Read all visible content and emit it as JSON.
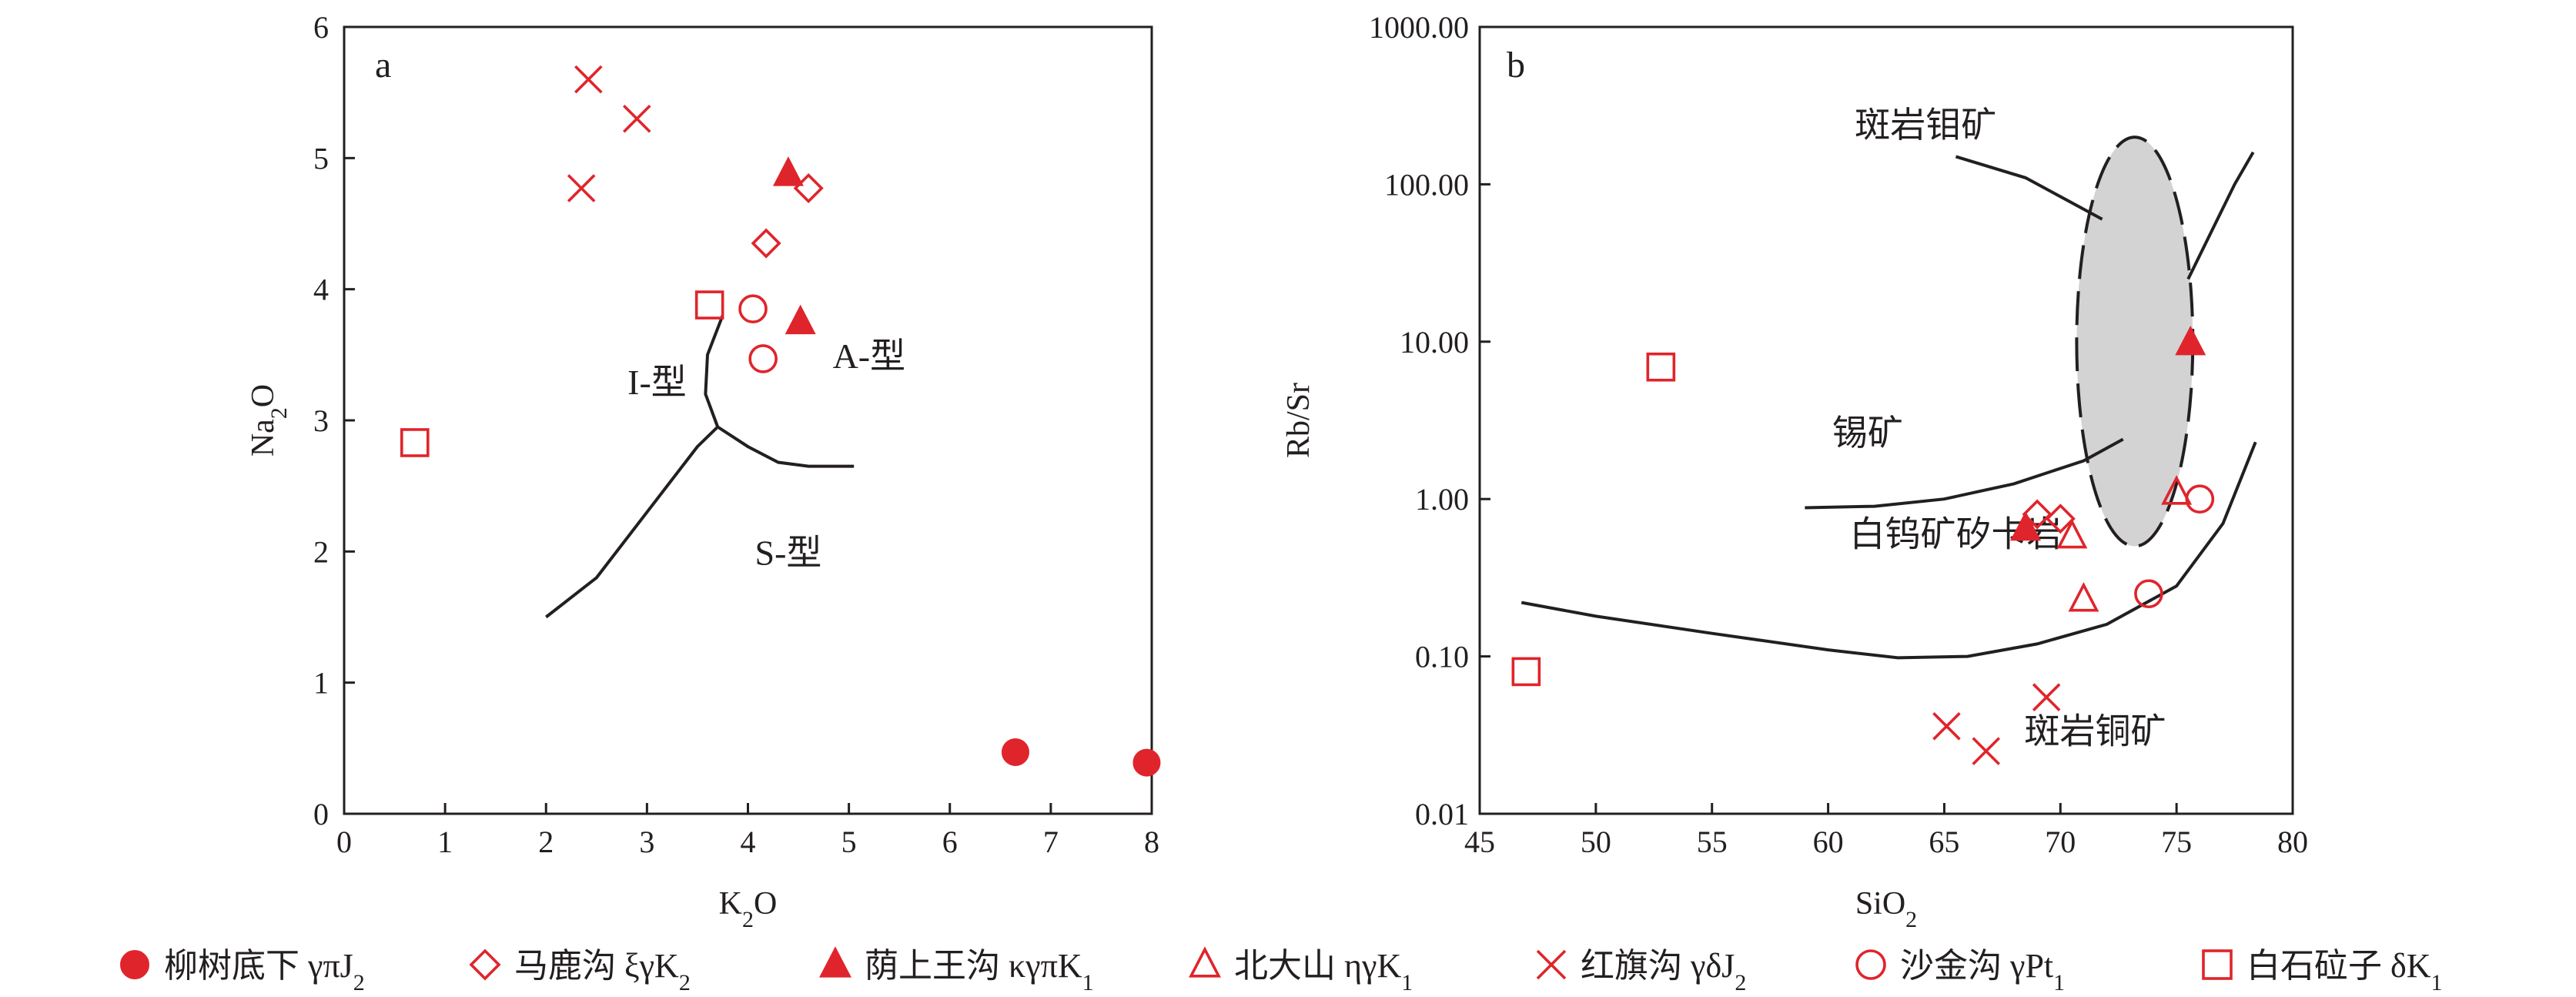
{
  "colors": {
    "marker": "#e0242b",
    "axis": "#231f20",
    "ellipse_fill": "#d3d3d3"
  },
  "legend": [
    {
      "symbol": "filled-circle",
      "name": "柳树底下",
      "rock": "γπ",
      "age": "J",
      "sub": "2"
    },
    {
      "symbol": "open-diamond",
      "name": "马鹿沟",
      "rock": "ξγ",
      "age": "K",
      "sub": "2"
    },
    {
      "symbol": "filled-triangle",
      "name": "荫上王沟",
      "rock": "κγπ",
      "age": "K",
      "sub": "1"
    },
    {
      "symbol": "open-triangle",
      "name": "北大山",
      "rock": "ηγ",
      "age": "K",
      "sub": "1"
    },
    {
      "symbol": "cross",
      "name": "红旗沟",
      "rock": "γδ",
      "age": "J",
      "sub": "2"
    },
    {
      "symbol": "open-circle",
      "name": "沙金沟",
      "rock": "γ",
      "age": "Pt",
      "sub": "1"
    },
    {
      "symbol": "open-square",
      "name": "白石砬子",
      "rock": "δ",
      "age": "K",
      "sub": "1"
    }
  ],
  "chart_data": [
    {
      "panel": "a",
      "type": "scatter",
      "xlabel": {
        "main": "K",
        "sub": "2",
        "tail": "O"
      },
      "ylabel": {
        "main": "Na",
        "sub": "2",
        "tail": "O"
      },
      "xlim": [
        0,
        8
      ],
      "ylim": [
        0,
        6
      ],
      "xticks": [
        0,
        1,
        2,
        3,
        4,
        5,
        6,
        7,
        8
      ],
      "yticks": [
        0,
        1,
        2,
        3,
        4,
        5,
        6
      ],
      "regions": [
        {
          "label": "I-型",
          "x": 3.1,
          "y": 3.2
        },
        {
          "label": "A-型",
          "x": 5.2,
          "y": 3.4
        },
        {
          "label": "S-型",
          "x": 4.4,
          "y": 1.9
        }
      ],
      "boundaries": [
        [
          [
            2.0,
            1.5
          ],
          [
            2.5,
            1.8
          ],
          [
            3.0,
            2.3
          ],
          [
            3.5,
            2.8
          ],
          [
            3.7,
            2.95
          ]
        ],
        [
          [
            3.7,
            2.95
          ],
          [
            3.58,
            3.2
          ],
          [
            3.6,
            3.5
          ],
          [
            3.75,
            3.8
          ]
        ],
        [
          [
            3.7,
            2.95
          ],
          [
            4.0,
            2.8
          ],
          [
            4.3,
            2.68
          ],
          [
            4.6,
            2.65
          ],
          [
            5.05,
            2.65
          ]
        ]
      ],
      "series": [
        {
          "symbol": "filled-circle",
          "points": [
            [
              6.65,
              0.47
            ],
            [
              7.95,
              0.39
            ]
          ]
        },
        {
          "symbol": "open-diamond",
          "points": [
            [
              4.6,
              4.77
            ],
            [
              4.18,
              4.35
            ]
          ]
        },
        {
          "symbol": "filled-triangle",
          "points": [
            [
              4.4,
              4.88
            ],
            [
              4.52,
              3.75
            ]
          ]
        },
        {
          "symbol": "cross",
          "points": [
            [
              2.42,
              5.6
            ],
            [
              2.9,
              5.3
            ],
            [
              2.35,
              4.77
            ]
          ]
        },
        {
          "symbol": "open-circle",
          "points": [
            [
              4.05,
              3.85
            ],
            [
              4.15,
              3.47
            ]
          ]
        },
        {
          "symbol": "open-square",
          "points": [
            [
              3.62,
              3.88
            ],
            [
              0.7,
              2.83
            ]
          ]
        }
      ]
    },
    {
      "panel": "b",
      "type": "scatter",
      "xlabel": {
        "main": "SiO",
        "sub": "2",
        "tail": ""
      },
      "ylabel": {
        "main": "Rb/Sr",
        "sub": "",
        "tail": ""
      },
      "xlim": [
        45,
        80
      ],
      "ylim": [
        0.01,
        1000
      ],
      "yscale": "log",
      "xticks": [
        45,
        50,
        55,
        60,
        65,
        70,
        75,
        80
      ],
      "yticks": [
        0.01,
        0.1,
        1,
        10,
        100,
        1000
      ],
      "ytick_labels": [
        "0.01",
        "0.10",
        "1.00",
        "10.00",
        "100.00",
        "1000.00"
      ],
      "regions": [
        {
          "label": "斑岩钼矿",
          "x": 64.2,
          "y": 200
        },
        {
          "label": "锡矿",
          "x": 61.7,
          "y": 2.2
        },
        {
          "label": "白钨矿矽卡岩",
          "x": 65.5,
          "y": 0.5
        },
        {
          "label": "斑岩铜矿",
          "x": 71.5,
          "y": 0.028
        }
      ],
      "ellipse": {
        "cx": 73.2,
        "cy_log": 1.0,
        "rx": 2.5,
        "ry_log": 1.3
      },
      "boundaries": [
        [
          [
            59,
            0.88
          ],
          [
            62,
            0.9
          ],
          [
            65,
            1.0
          ],
          [
            68,
            1.25
          ],
          [
            71,
            1.75
          ],
          [
            72.7,
            2.4
          ]
        ],
        [
          [
            75.5,
            25
          ],
          [
            76.5,
            50
          ],
          [
            77.5,
            100
          ],
          [
            78.3,
            160
          ]
        ],
        [
          [
            46.8,
            0.22
          ],
          [
            50,
            0.18
          ],
          [
            55,
            0.14
          ],
          [
            60,
            0.11
          ],
          [
            63,
            0.098
          ],
          [
            66,
            0.1
          ],
          [
            69,
            0.12
          ],
          [
            72,
            0.16
          ],
          [
            75,
            0.28
          ],
          [
            77,
            0.7
          ],
          [
            78.4,
            2.3
          ]
        ],
        [
          [
            65.5,
            150
          ],
          [
            68.5,
            110
          ],
          [
            71.8,
            60
          ]
        ]
      ],
      "series": [
        {
          "symbol": "open-diamond",
          "points": [
            [
              69.0,
              0.8
            ],
            [
              70.0,
              0.75
            ]
          ]
        },
        {
          "symbol": "filled-triangle",
          "points": [
            [
              68.5,
              0.65
            ],
            [
              75.6,
              9.8
            ]
          ]
        },
        {
          "symbol": "open-triangle",
          "points": [
            [
              70.5,
              0.58
            ],
            [
              71.0,
              0.23
            ],
            [
              75.0,
              1.1
            ]
          ]
        },
        {
          "symbol": "cross",
          "points": [
            [
              65.1,
              0.036
            ],
            [
              66.8,
              0.025
            ],
            [
              69.4,
              0.055
            ]
          ]
        },
        {
          "symbol": "open-circle",
          "points": [
            [
              73.8,
              0.25
            ],
            [
              76.0,
              1.0
            ]
          ]
        },
        {
          "symbol": "open-square",
          "points": [
            [
              52.8,
              6.9
            ],
            [
              47.0,
              0.08
            ]
          ]
        }
      ]
    }
  ]
}
